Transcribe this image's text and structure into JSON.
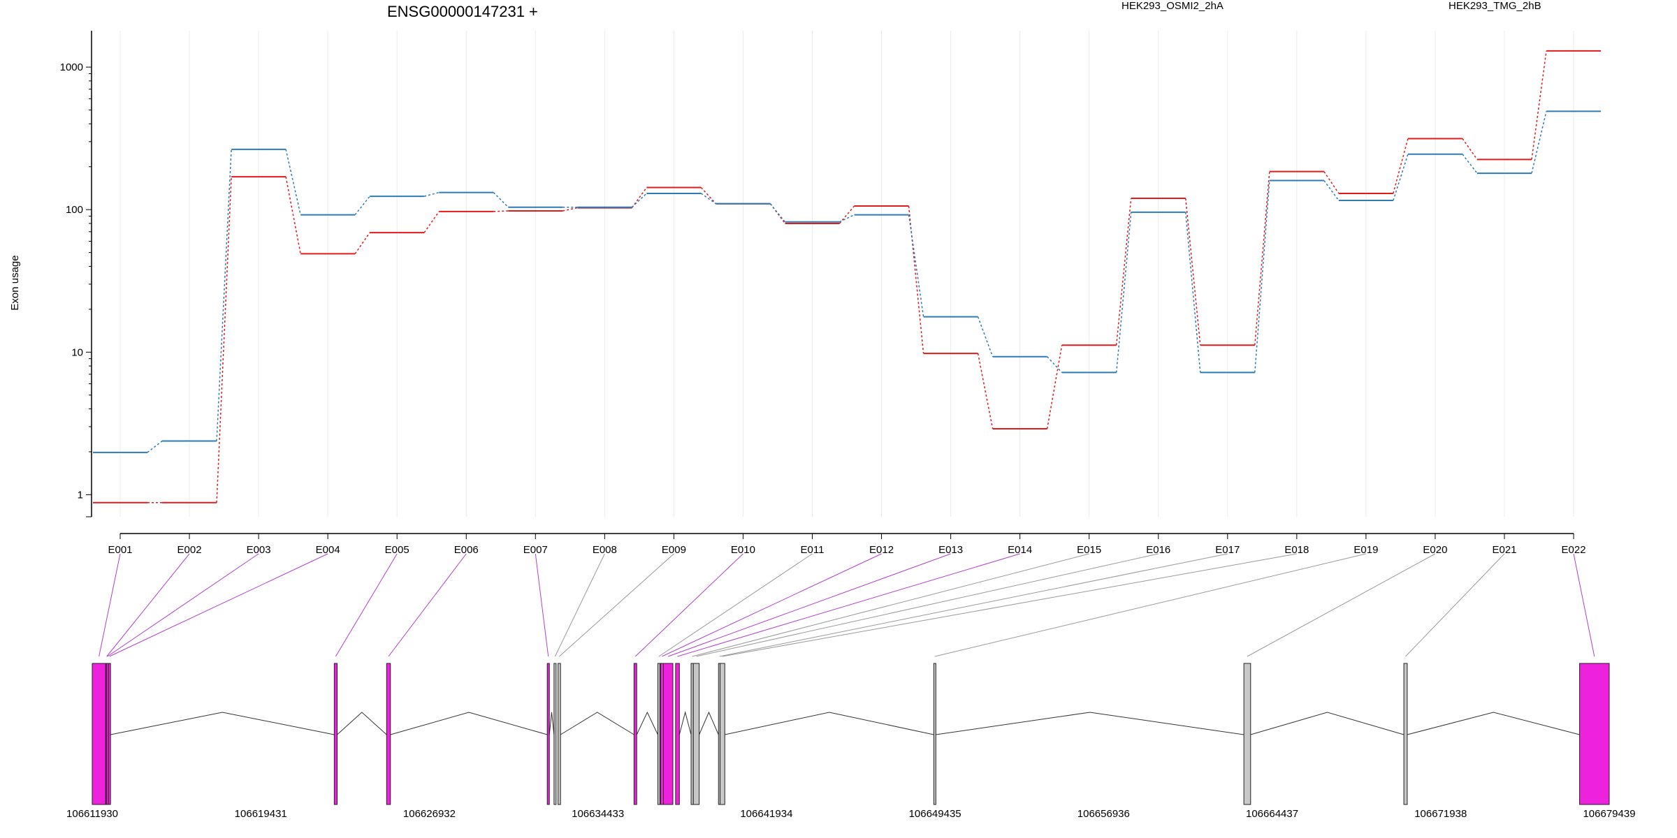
{
  "chart_data": {
    "type": "line",
    "title": "ENSG00000147231 +",
    "xlabel": "",
    "ylabel": "Exon usage",
    "y_scale": "log",
    "ylim": [
      0.7,
      1800
    ],
    "y_ticks": [
      1,
      10,
      100,
      1000
    ],
    "y_tick_labels": [
      "1",
      "10",
      "100",
      "1000"
    ],
    "grid": "vertical",
    "legend_placement": "top",
    "categories": [
      "E001",
      "E002",
      "E003",
      "E004",
      "E005",
      "E006",
      "E007",
      "E008",
      "E009",
      "E010",
      "E011",
      "E012",
      "E013",
      "E014",
      "E015",
      "E016",
      "E017",
      "E018",
      "E019",
      "E020",
      "E021",
      "E022"
    ],
    "series": [
      {
        "name": "HEK293_OSMI2_2hA",
        "color": "#e31a1c",
        "values": [
          0.88,
          0.88,
          170,
          49,
          69,
          97,
          98,
          103,
          143,
          110,
          80,
          106,
          9.8,
          2.9,
          11.2,
          120,
          11.2,
          185,
          130,
          315,
          225,
          1300
        ]
      },
      {
        "name": "HEK293_TMG_2hB",
        "color": "#2c7bb6",
        "values": [
          1.98,
          2.38,
          265,
          92,
          124,
          132,
          104,
          104,
          130,
          110,
          82,
          92,
          17.7,
          9.3,
          7.2,
          96,
          7.2,
          160,
          116,
          245,
          180,
          490
        ]
      }
    ],
    "gene_model": {
      "start_label": "106611930",
      "axis_labels": [
        "106611930",
        "106619431",
        "106626932",
        "106634433",
        "106641934",
        "106649435",
        "106656936",
        "106664437",
        "106671938",
        "106679439"
      ],
      "axis_values": [
        106611930,
        106619431,
        106626932,
        106634433,
        106641934,
        106649435,
        106656936,
        106664437,
        106671938,
        106679439
      ],
      "highlight_color": "#ee22dd",
      "normal_color": "#c8c8c8",
      "exons": [
        {
          "id": "E001",
          "start": 106611930,
          "end": 106612530,
          "significant": true
        },
        {
          "id": "E002",
          "start": 106612530,
          "end": 106612560,
          "significant": true
        },
        {
          "id": "E003",
          "start": 106612560,
          "end": 106612650,
          "significant": true
        },
        {
          "id": "E004",
          "start": 106612650,
          "end": 106612700,
          "significant": true
        },
        {
          "id": "E005",
          "start": 106622700,
          "end": 106622830,
          "significant": true
        },
        {
          "id": "E006",
          "start": 106625030,
          "end": 106625200,
          "significant": true
        },
        {
          "id": "E007",
          "start": 106632180,
          "end": 106632270,
          "significant": true
        },
        {
          "id": "E008",
          "start": 106632480,
          "end": 106632560,
          "significant": false
        },
        {
          "id": "E009",
          "start": 106632660,
          "end": 106632770,
          "significant": false
        },
        {
          "id": "E010",
          "start": 106636040,
          "end": 106636160,
          "significant": true
        },
        {
          "id": "E011",
          "start": 106637100,
          "end": 106637180,
          "significant": false
        },
        {
          "id": "E012",
          "start": 106637220,
          "end": 106637350,
          "significant": true
        },
        {
          "id": "E013",
          "start": 106637350,
          "end": 106637770,
          "significant": true
        },
        {
          "id": "E014",
          "start": 106637890,
          "end": 106638060,
          "significant": true
        },
        {
          "id": "E015",
          "start": 106638580,
          "end": 106638680,
          "significant": false
        },
        {
          "id": "E016",
          "start": 106638680,
          "end": 106638940,
          "significant": false
        },
        {
          "id": "E017",
          "start": 106639800,
          "end": 106639870,
          "significant": false
        },
        {
          "id": "E018",
          "start": 106639870,
          "end": 106640080,
          "significant": false
        },
        {
          "id": "E019",
          "start": 106649380,
          "end": 106649450,
          "significant": false
        },
        {
          "id": "E020",
          "start": 106663180,
          "end": 106663480,
          "significant": false
        },
        {
          "id": "E021",
          "start": 106670300,
          "end": 106670450,
          "significant": false
        },
        {
          "id": "E022",
          "start": 106678120,
          "end": 106679439,
          "significant": true
        }
      ]
    }
  }
}
